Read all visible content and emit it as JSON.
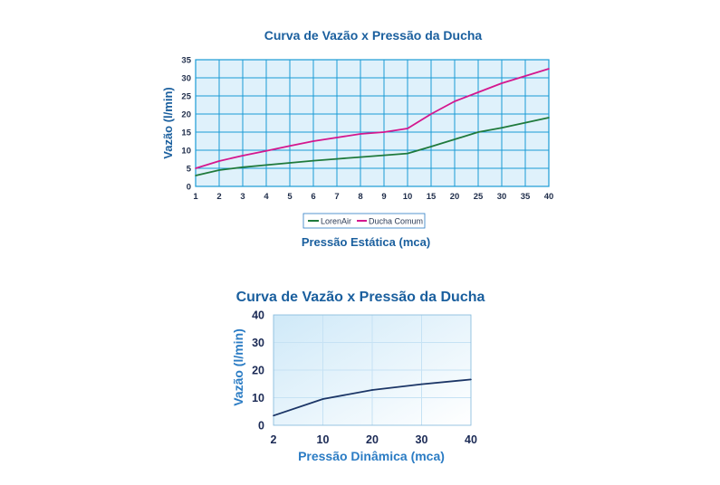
{
  "chart_data": [
    {
      "type": "line",
      "title": "Curva de Vazão x Pressão da Ducha",
      "xlabel": "Pressão Estática (mca)",
      "ylabel": "Vazão (l/min)",
      "categories": [
        "1",
        "2",
        "3",
        "4",
        "5",
        "6",
        "7",
        "8",
        "9",
        "10",
        "15",
        "20",
        "25",
        "30",
        "35",
        "40"
      ],
      "ylim": [
        0,
        35
      ],
      "yticks": [
        "0",
        "5",
        "10",
        "15",
        "20",
        "25",
        "30",
        "35"
      ],
      "grid": true,
      "legend_position": "bottom",
      "series": [
        {
          "name": "LorenAir",
          "color": "#1f7a3c",
          "values": [
            3.0,
            4.5,
            5.3,
            5.9,
            6.5,
            7.1,
            7.6,
            8.1,
            8.6,
            9.1,
            11.0,
            13.0,
            15.0,
            16.2,
            17.6,
            19.0
          ]
        },
        {
          "name": "Ducha Comum",
          "color": "#d4178e",
          "values": [
            5.0,
            7.0,
            8.5,
            9.8,
            11.2,
            12.5,
            13.5,
            14.5,
            15.0,
            16.0,
            20.0,
            23.5,
            26.0,
            28.5,
            30.5,
            32.5
          ]
        }
      ],
      "grid_color": "#1a9bd6",
      "plot_bg": "#dff1fb"
    },
    {
      "type": "line",
      "title": "Curva de Vazão x Pressão da Ducha",
      "xlabel": "Pressão Dinâmica (mca)",
      "ylabel": "Vazão (l/min)",
      "categories": [
        "2",
        "10",
        "20",
        "30",
        "40"
      ],
      "ylim": [
        0,
        40
      ],
      "yticks": [
        "0",
        "10",
        "20",
        "30",
        "40"
      ],
      "grid": true,
      "series": [
        {
          "name": "",
          "color": "#1b3566",
          "values": [
            3.5,
            9.5,
            12.8,
            14.9,
            16.6
          ]
        }
      ],
      "grid_color": "#c6e2f4",
      "plot_bg": "#e4f3fc"
    }
  ]
}
